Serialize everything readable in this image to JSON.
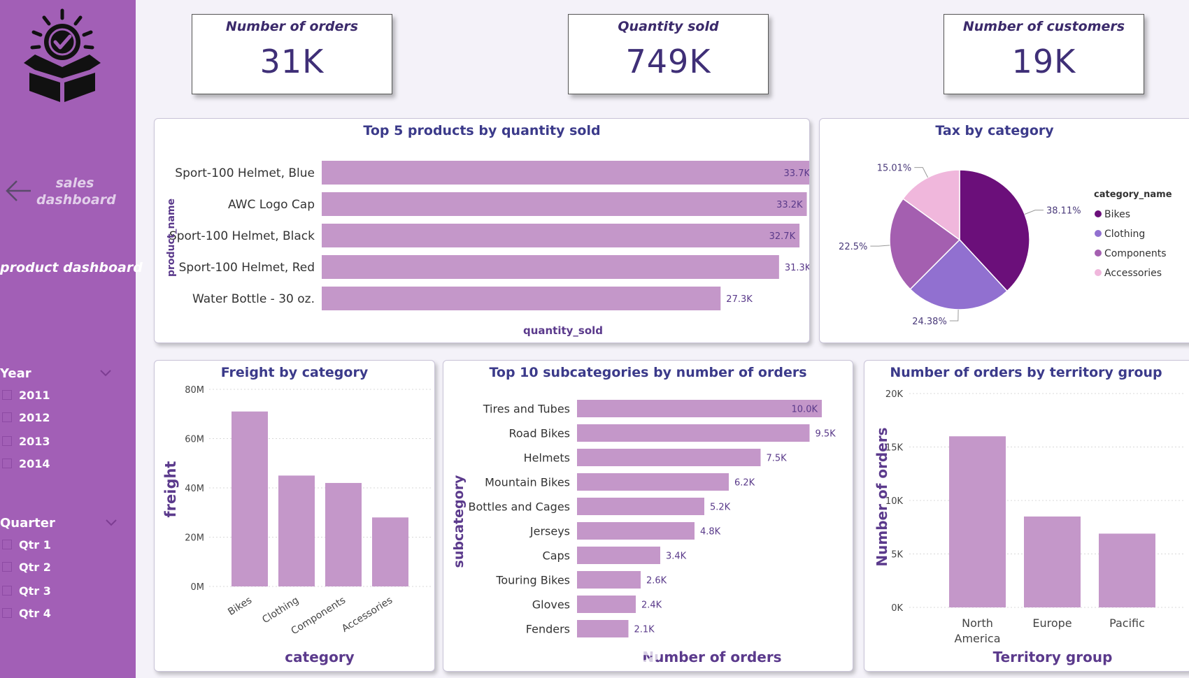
{
  "sidebar": {
    "nav_sales": "sales dashboard",
    "nav_product": "product dashboard",
    "year_title": "Year",
    "years": [
      "2011",
      "2012",
      "2013",
      "2014"
    ],
    "quarter_title": "Quarter",
    "quarters": [
      "Qtr 1",
      "Qtr 2",
      "Qtr 3",
      "Qtr 4"
    ]
  },
  "kpis": [
    {
      "title": "Number of orders",
      "value": "31K"
    },
    {
      "title": "Quantity sold",
      "value": "749K"
    },
    {
      "title": "Number of customers",
      "value": "19K"
    }
  ],
  "colors": {
    "sidebar": "#a25fb6",
    "bar": "#c497c9",
    "title": "#3b3a8a",
    "axis_label": "#5b3a8c",
    "pie_bikes": "#6b0f7a",
    "pie_clothing": "#9170d0",
    "pie_components": "#a45fb0",
    "pie_accessories": "#f0b7dc"
  },
  "watermark": "خمسات",
  "charts": {
    "top_products": {
      "title": "Top 5 products by quantity sold",
      "xlabel": "quantity_sold",
      "ylabel": "product_name"
    },
    "tax": {
      "title": "Tax by category",
      "legend_title": "category_name"
    },
    "freight": {
      "title": "Freight by category",
      "xlabel": "category",
      "ylabel": "freight"
    },
    "subcategories": {
      "title": "Top 10 subcategories by number of orders",
      "xlabel": "Number of orders",
      "ylabel": "subcategory"
    },
    "territory": {
      "title": "Number of orders by territory group",
      "xlabel": "Territory group",
      "ylabel": "Number of orders"
    }
  },
  "chart_data": [
    {
      "type": "bar",
      "orientation": "horizontal",
      "title": "Top 5 products by quantity sold",
      "categories": [
        "Sport-100 Helmet, Blue",
        "AWC Logo Cap",
        "Sport-100 Helmet, Black",
        "Sport-100 Helmet, Red",
        "Water Bottle - 30 oz."
      ],
      "values": [
        33700,
        33200,
        32700,
        31300,
        27300
      ],
      "labels": [
        "33.7K",
        "33.2K",
        "32.7K",
        "31.3K",
        "27.3K"
      ],
      "xlabel": "quantity_sold",
      "ylabel": "product_name",
      "xlim": [
        0,
        35000
      ]
    },
    {
      "type": "pie",
      "title": "Tax by category",
      "legend_title": "category_name",
      "legend_position": "right",
      "categories": [
        "Bikes",
        "Clothing",
        "Components",
        "Accessories"
      ],
      "values": [
        38.11,
        24.38,
        22.5,
        15.01
      ],
      "labels": [
        "38.11%",
        "24.38%",
        "22.5%",
        "15.01%"
      ]
    },
    {
      "type": "bar",
      "title": "Freight by category",
      "categories": [
        "Bikes",
        "Clothing",
        "Components",
        "Accessories"
      ],
      "values": [
        71000000,
        45000000,
        42000000,
        28000000
      ],
      "xlabel": "category",
      "ylabel": "freight",
      "ylim": [
        0,
        80000000
      ],
      "yticks": [
        "0M",
        "20M",
        "40M",
        "60M",
        "80M"
      ],
      "grid": true
    },
    {
      "type": "bar",
      "orientation": "horizontal",
      "title": "Top 10 subcategories by number of orders",
      "categories": [
        "Tires and Tubes",
        "Road Bikes",
        "Helmets",
        "Mountain Bikes",
        "Bottles and Cages",
        "Jerseys",
        "Caps",
        "Touring Bikes",
        "Gloves",
        "Fenders"
      ],
      "values": [
        10000,
        9500,
        7500,
        6200,
        5200,
        4800,
        3400,
        2600,
        2400,
        2100
      ],
      "labels": [
        "10.0K",
        "9.5K",
        "7.5K",
        "6.2K",
        "5.2K",
        "4.8K",
        "3.4K",
        "2.6K",
        "2.4K",
        "2.1K"
      ],
      "xlabel": "Number of orders",
      "ylabel": "subcategory",
      "xlim": [
        0,
        10000
      ]
    },
    {
      "type": "bar",
      "title": "Number of orders by territory group",
      "categories": [
        "North America",
        "Europe",
        "Pacific"
      ],
      "values": [
        16000,
        8500,
        6900
      ],
      "xlabel": "Territory group",
      "ylabel": "Number of orders",
      "ylim": [
        0,
        20000
      ],
      "yticks": [
        "0K",
        "5K",
        "10K",
        "15K",
        "20K"
      ],
      "grid": true
    }
  ]
}
